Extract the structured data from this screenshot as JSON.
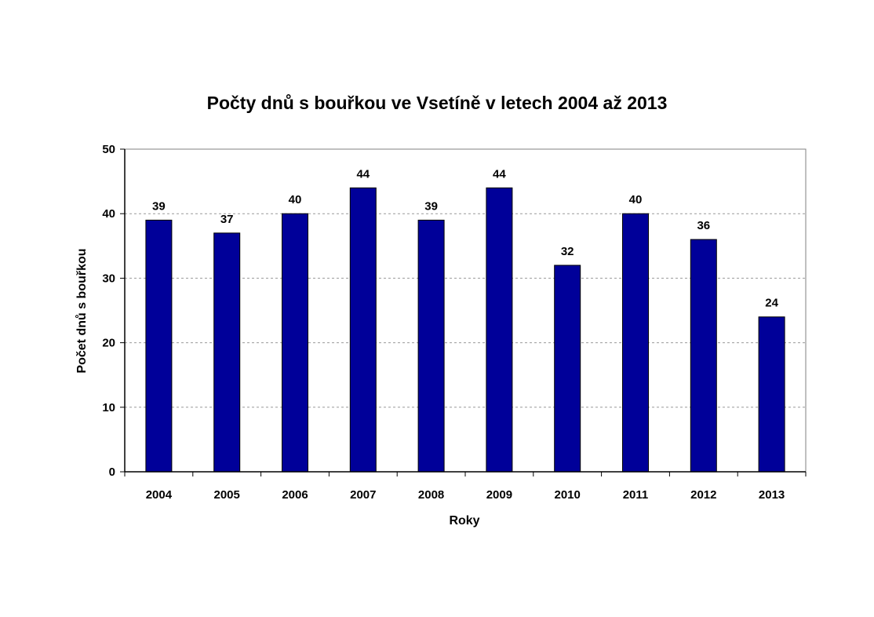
{
  "chart_data": {
    "type": "bar",
    "title": "Počty dnů s bouřkou ve Vsetíně v letech 2004 až 2013",
    "xlabel": "Roky",
    "ylabel": "Počet dnů s bouřkou",
    "categories": [
      "2004",
      "2005",
      "2006",
      "2007",
      "2008",
      "2009",
      "2010",
      "2011",
      "2012",
      "2013"
    ],
    "values": [
      39,
      37,
      40,
      44,
      39,
      44,
      32,
      40,
      36,
      24
    ],
    "ylim": [
      0,
      50
    ],
    "yticks": [
      "0",
      "10",
      "20",
      "30",
      "40",
      "50"
    ],
    "grid": true,
    "legend": "none",
    "bar_color": "#000099",
    "data_labels": true
  }
}
